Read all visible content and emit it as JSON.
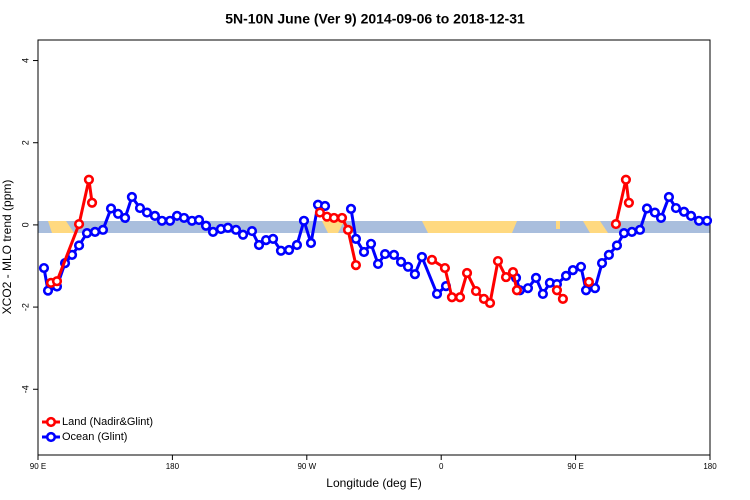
{
  "chart_data": {
    "type": "line",
    "title": "5N-10N June (Ver 9)   2014-09-06 to 2018-12-31",
    "x_label": "Longitude (deg E)",
    "y_label": "XCO2 - MLO trend (ppm)",
    "xlim": [
      90,
      540
    ],
    "xticks": [
      {
        "value": 90,
        "label": "90 E"
      },
      180,
      {
        "value": 270,
        "label": "90 W"
      },
      {
        "value": 360,
        "label": "0"
      },
      {
        "value": 450,
        "label": "90 E"
      },
      {
        "value": 540,
        "label": "180"
      }
    ],
    "ylim": [
      -5.6,
      4.5
    ],
    "yticks": [
      -4,
      -2,
      0,
      2,
      4
    ],
    "legend": "bottom-left",
    "series": [
      {
        "name": "Land (Nadir&Glint)",
        "color": "#ff0000",
        "x": [
          98.7,
          102.7,
          117.5,
          124.1,
          126.2,
          null,
          278.8,
          283.5,
          288.2,
          293.6,
          297.6,
          302.9,
          null,
          353.8,
          362.5,
          367.2,
          372.6,
          377.3,
          383.3,
          388.6,
          392.7,
          398.0,
          403.4,
          408.1,
          410.7,
          null,
          437.5,
          441.5,
          null,
          458.9,
          null,
          477.0,
          483.7,
          485.7
        ],
        "values": [
          -1.41,
          -1.37,
          0.02,
          1.1,
          0.54,
          null,
          0.3,
          0.2,
          0.17,
          0.17,
          -0.12,
          -0.98,
          null,
          -0.85,
          -1.05,
          -1.76,
          -1.76,
          -1.17,
          -1.61,
          -1.8,
          -1.9,
          -0.88,
          -1.27,
          -1.15,
          -1.59,
          null,
          -1.59,
          -1.8,
          null,
          -1.39,
          null,
          0.02,
          1.1,
          0.54
        ]
      },
      {
        "name": "Ocean (Glint)",
        "color": "#0000ff",
        "x": [
          94.0,
          96.7,
          102.7,
          108.1,
          112.8,
          117.5,
          122.8,
          128.2,
          133.5,
          138.9,
          143.6,
          148.3,
          152.9,
          158.3,
          163.0,
          168.3,
          173.0,
          178.4,
          183.1,
          187.8,
          193.1,
          197.8,
          202.5,
          207.2,
          212.5,
          217.2,
          222.6,
          227.3,
          233.3,
          238.0,
          242.7,
          247.4,
          252.7,
          258.1,
          263.4,
          268.1,
          272.8,
          277.5,
          282.2,
          null,
          299.6,
          302.9,
          308.3,
          313.0,
          317.7,
          322.4,
          328.4,
          333.1,
          337.8,
          342.4,
          347.1,
          357.2,
          363.2,
          null,
          410.1,
          412.7,
          418.1,
          423.5,
          428.1,
          432.8,
          437.5,
          443.6,
          448.2,
          453.6,
          457.0,
          463.0,
          467.7,
          472.3,
          477.7,
          482.4,
          487.7,
          493.1,
          497.8,
          503.1,
          507.2,
          512.5,
          517.2,
          522.6,
          527.3,
          532.6,
          538.0
        ],
        "values": [
          -1.05,
          -1.6,
          -1.5,
          -0.93,
          -0.73,
          -0.5,
          -0.2,
          -0.17,
          -0.12,
          0.4,
          0.27,
          0.17,
          0.68,
          0.41,
          0.3,
          0.22,
          0.1,
          0.1,
          0.22,
          0.17,
          0.1,
          0.12,
          -0.02,
          -0.17,
          -0.1,
          -0.07,
          -0.12,
          -0.24,
          -0.15,
          -0.49,
          -0.37,
          -0.34,
          -0.63,
          -0.61,
          -0.49,
          0.1,
          -0.44,
          0.49,
          0.46,
          null,
          0.39,
          -0.34,
          -0.66,
          -0.46,
          -0.95,
          -0.71,
          -0.73,
          -0.9,
          -1.02,
          -1.2,
          -0.78,
          -1.68,
          -1.49,
          null,
          -1.29,
          -1.59,
          -1.54,
          -1.29,
          -1.68,
          -1.41,
          -1.44,
          -1.24,
          -1.1,
          -1.02,
          -1.59,
          -1.54,
          -0.93,
          -0.73,
          -0.5,
          -0.2,
          -0.17,
          -0.12,
          0.4,
          0.3,
          0.17,
          0.68,
          0.41,
          0.32,
          0.22,
          0.1,
          0.1
        ]
      }
    ]
  }
}
